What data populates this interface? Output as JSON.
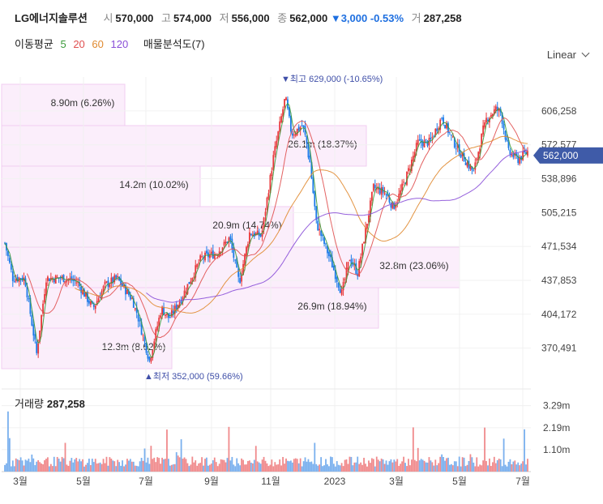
{
  "header": {
    "name": "LG에너지솔루션",
    "open_label": "시",
    "open": "570,000",
    "high_label": "고",
    "high": "574,000",
    "low_label": "저",
    "low": "556,000",
    "close_label": "종",
    "close": "562,000",
    "change": "▼3,000 -0.53%",
    "volume_label": "거",
    "volume": "287,258"
  },
  "moving_avg": {
    "label": "이동평균",
    "periods": [
      {
        "text": "5",
        "color": "#3a9a3a"
      },
      {
        "text": "20",
        "color": "#e05050"
      },
      {
        "text": "60",
        "color": "#e08a30"
      },
      {
        "text": "120",
        "color": "#8a4fd8"
      }
    ],
    "profile_label": "매물분석도(7)"
  },
  "scale_button": "Linear",
  "price_axis": {
    "ticks": [
      "606,258",
      "572,577",
      "538,896",
      "505,215",
      "471,534",
      "437,853",
      "404,172",
      "370,491"
    ],
    "current_price": "562,000"
  },
  "annotations": {
    "high": "▼최고 629,000 (-10.65%)",
    "low": "▲최저 352,000 (59.66%)"
  },
  "volume_profile": [
    {
      "label": "8.90m (6.26%)"
    },
    {
      "label": "26.1m (18.37%)"
    },
    {
      "label": "14.2m (10.02%)"
    },
    {
      "label": "20.9m (14.74%)"
    },
    {
      "label": "32.8m (23.06%)"
    },
    {
      "label": "26.9m (18.94%)"
    },
    {
      "label": "12.3m (8.62%)"
    }
  ],
  "volume_panel": {
    "label": "거래량",
    "value": "287,258",
    "ticks": [
      "3.29m",
      "2.19m",
      "1.10m"
    ]
  },
  "x_axis": {
    "ticks": [
      "3월",
      "5월",
      "7월",
      "9월",
      "11월",
      "2023",
      "3월",
      "5월",
      "7월"
    ]
  },
  "chart_data": {
    "type": "candlestick",
    "y_range": [
      350000,
      640000
    ],
    "x_labels": [
      "3월",
      "5월",
      "7월",
      "9월",
      "11월",
      "2023",
      "3월",
      "5월",
      "7월"
    ],
    "anchors": [
      [
        0,
        475000
      ],
      [
        10,
        440000
      ],
      [
        25,
        440000
      ],
      [
        40,
        365000
      ],
      [
        52,
        440000
      ],
      [
        75,
        440000
      ],
      [
        90,
        436000
      ],
      [
        110,
        410000
      ],
      [
        125,
        433000
      ],
      [
        140,
        440000
      ],
      [
        160,
        418000
      ],
      [
        180,
        358000
      ],
      [
        195,
        410000
      ],
      [
        205,
        400000
      ],
      [
        220,
        420000
      ],
      [
        245,
        460000
      ],
      [
        265,
        465000
      ],
      [
        280,
        480000
      ],
      [
        292,
        435000
      ],
      [
        305,
        485000
      ],
      [
        320,
        482000
      ],
      [
        335,
        560000
      ],
      [
        342,
        588000
      ],
      [
        350,
        620000
      ],
      [
        358,
        583000
      ],
      [
        372,
        592000
      ],
      [
        378,
        570000
      ],
      [
        388,
        495000
      ],
      [
        405,
        460000
      ],
      [
        420,
        425000
      ],
      [
        430,
        460000
      ],
      [
        440,
        445000
      ],
      [
        460,
        530000
      ],
      [
        475,
        525000
      ],
      [
        485,
        510000
      ],
      [
        500,
        540000
      ],
      [
        515,
        575000
      ],
      [
        530,
        575000
      ],
      [
        545,
        600000
      ],
      [
        560,
        575000
      ],
      [
        572,
        560000
      ],
      [
        585,
        545000
      ],
      [
        600,
        598000
      ],
      [
        612,
        608000
      ],
      [
        618,
        605000
      ],
      [
        628,
        565000
      ],
      [
        640,
        558000
      ],
      [
        652,
        566000
      ]
    ],
    "volume_range": [
      0,
      3800000
    ],
    "volume_ticks": [
      3290000,
      2190000,
      1100000
    ],
    "last_volume": 287258
  }
}
